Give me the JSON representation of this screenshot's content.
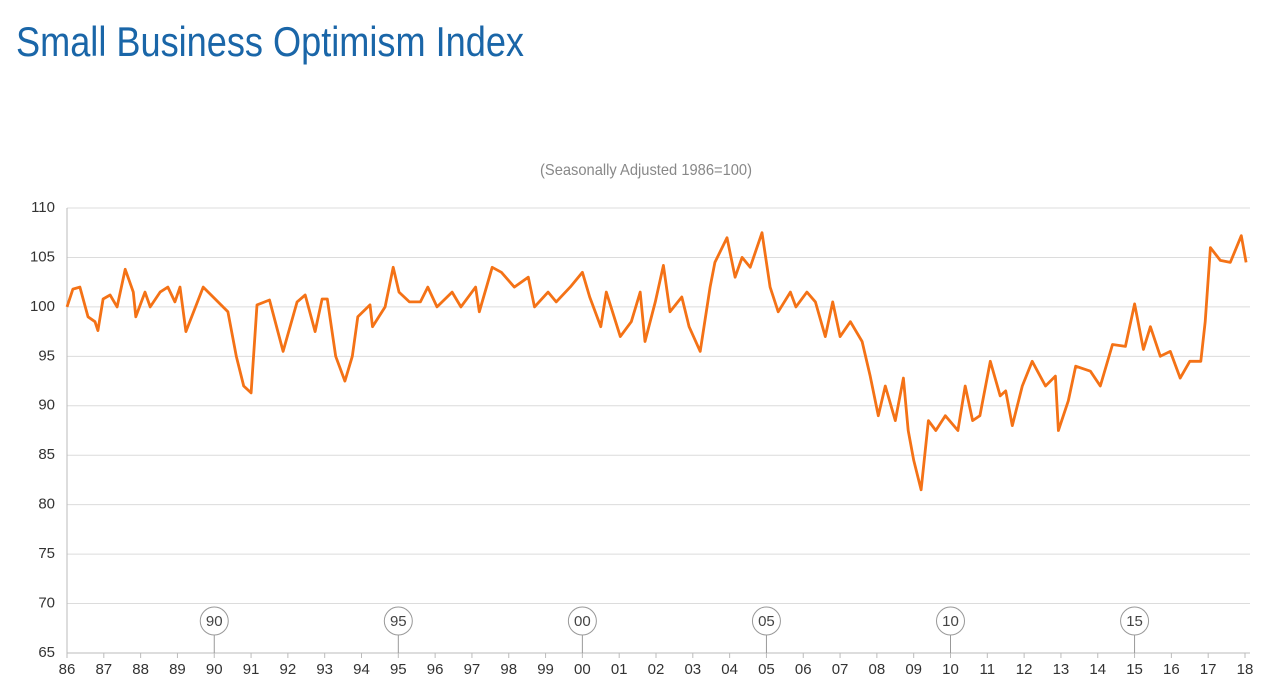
{
  "chart_data": {
    "type": "line",
    "title": "Small Business Optimism Index",
    "subtitle": "(Seasonally Adjusted 1986=100)",
    "series": [
      {
        "name": "Small Business Optimism Index",
        "color": "#f47216",
        "x": [
          1986.0,
          1986.16,
          1986.35,
          1986.57,
          1986.76,
          1986.84,
          1986.98,
          1987.17,
          1987.36,
          1987.58,
          1987.8,
          1987.87,
          1988.12,
          1988.26,
          1988.53,
          1988.74,
          1988.93,
          1989.07,
          1989.23,
          1989.7,
          1990.37,
          1990.6,
          1990.8,
          1991.0,
          1991.16,
          1991.5,
          1991.87,
          1992.25,
          1992.47,
          1992.74,
          1992.93,
          1993.07,
          1993.3,
          1993.55,
          1993.75,
          1993.9,
          1994.23,
          1994.3,
          1994.64,
          1994.86,
          1995.02,
          1995.3,
          1995.6,
          1995.8,
          1996.05,
          1996.46,
          1996.7,
          1997.1,
          1997.2,
          1997.55,
          1997.8,
          1998.15,
          1998.53,
          1998.7,
          1999.07,
          1999.29,
          1999.67,
          2000.0,
          2000.2,
          2000.5,
          2000.65,
          2001.03,
          2001.33,
          2001.57,
          2001.7,
          2001.98,
          2002.2,
          2002.38,
          2002.7,
          2002.9,
          2003.2,
          2003.47,
          2003.6,
          2003.93,
          2004.15,
          2004.34,
          2004.56,
          2004.88,
          2005.1,
          2005.32,
          2005.65,
          2005.8,
          2006.1,
          2006.33,
          2006.6,
          2006.8,
          2007.0,
          2007.28,
          2007.6,
          2007.82,
          2008.04,
          2008.23,
          2008.5,
          2008.72,
          2008.85,
          2009.0,
          2009.2,
          2009.4,
          2009.6,
          2009.86,
          2010.2,
          2010.4,
          2010.6,
          2010.8,
          2011.08,
          2011.35,
          2011.5,
          2011.68,
          2011.95,
          2012.22,
          2012.58,
          2012.85,
          2012.93,
          2013.2,
          2013.4,
          2013.8,
          2014.07,
          2014.4,
          2014.75,
          2015.0,
          2015.24,
          2015.43,
          2015.7,
          2015.97,
          2016.24,
          2016.5,
          2016.8,
          2016.92,
          2017.06,
          2017.33,
          2017.6,
          2017.9,
          2018.03
        ],
        "values": [
          100,
          101.8,
          102,
          99,
          98.5,
          97.6,
          100.8,
          101.2,
          100,
          103.8,
          101.5,
          99,
          101.5,
          100,
          101.5,
          102,
          100.5,
          102,
          97.5,
          102,
          99.5,
          95,
          92,
          91.3,
          100.2,
          100.7,
          95.5,
          100.5,
          101.2,
          97.5,
          100.8,
          100.8,
          95,
          92.5,
          95,
          99,
          100.2,
          98,
          100,
          104,
          101.5,
          100.5,
          100.5,
          102,
          100,
          101.5,
          100,
          102,
          99.5,
          104,
          103.5,
          102,
          103,
          100,
          101.5,
          100.5,
          102,
          103.5,
          101,
          98,
          101.5,
          97,
          98.5,
          101.5,
          96.5,
          100.5,
          104.2,
          99.5,
          101,
          98,
          95.5,
          102,
          104.5,
          107,
          103,
          105,
          104,
          107.5,
          102,
          99.5,
          101.5,
          100,
          101.5,
          100.5,
          97,
          100.5,
          97,
          98.5,
          96.5,
          93,
          89,
          92,
          88.5,
          92.8,
          87.5,
          84.5,
          81.5,
          88.5,
          87.5,
          89,
          87.5,
          92,
          88.5,
          89,
          94.5,
          91,
          91.5,
          88,
          92,
          94.5,
          92,
          93,
          87.5,
          90.5,
          94,
          93.5,
          92,
          96.2,
          96,
          100.3,
          95.7,
          98,
          95,
          95.5,
          92.8,
          94.5,
          94.5,
          98.5,
          106,
          104.7,
          104.5,
          107.2,
          104.5
        ]
      }
    ],
    "xlim": [
      1986,
      2018
    ],
    "xticks": [
      {
        "value": 1986,
        "label": "86"
      },
      {
        "value": 1987,
        "label": "87"
      },
      {
        "value": 1988,
        "label": "88"
      },
      {
        "value": 1989,
        "label": "89"
      },
      {
        "value": 1990,
        "label": "90"
      },
      {
        "value": 1991,
        "label": "91"
      },
      {
        "value": 1992,
        "label": "92"
      },
      {
        "value": 1993,
        "label": "93"
      },
      {
        "value": 1994,
        "label": "94"
      },
      {
        "value": 1995,
        "label": "95"
      },
      {
        "value": 1996,
        "label": "96"
      },
      {
        "value": 1997,
        "label": "97"
      },
      {
        "value": 1998,
        "label": "98"
      },
      {
        "value": 1999,
        "label": "99"
      },
      {
        "value": 2000,
        "label": "00"
      },
      {
        "value": 2001,
        "label": "01"
      },
      {
        "value": 2002,
        "label": "02"
      },
      {
        "value": 2003,
        "label": "03"
      },
      {
        "value": 2004,
        "label": "04"
      },
      {
        "value": 2005,
        "label": "05"
      },
      {
        "value": 2006,
        "label": "06"
      },
      {
        "value": 2007,
        "label": "07"
      },
      {
        "value": 2008,
        "label": "08"
      },
      {
        "value": 2009,
        "label": "09"
      },
      {
        "value": 2010,
        "label": "10"
      },
      {
        "value": 2011,
        "label": "11"
      },
      {
        "value": 2012,
        "label": "12"
      },
      {
        "value": 2013,
        "label": "13"
      },
      {
        "value": 2014,
        "label": "14"
      },
      {
        "value": 2015,
        "label": "15"
      },
      {
        "value": 2016,
        "label": "16"
      },
      {
        "value": 2017,
        "label": "17"
      },
      {
        "value": 2018,
        "label": "18"
      }
    ],
    "ylim": [
      65,
      110
    ],
    "yticks": [
      65,
      70,
      75,
      80,
      85,
      90,
      95,
      100,
      105,
      110
    ],
    "grid": true,
    "markers": [
      {
        "value": 1990,
        "label": "90"
      },
      {
        "value": 1995,
        "label": "95"
      },
      {
        "value": 2000,
        "label": "00"
      },
      {
        "value": 2005,
        "label": "05"
      },
      {
        "value": 2010,
        "label": "10"
      },
      {
        "value": 2015,
        "label": "15"
      }
    ]
  }
}
